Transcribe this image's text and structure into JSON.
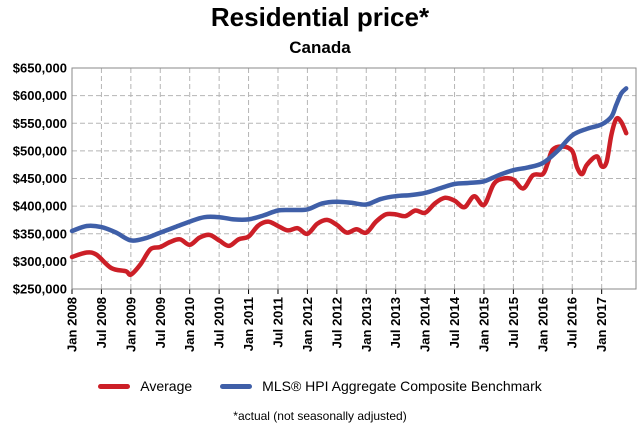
{
  "chart_data": {
    "type": "line",
    "title": "Residential price*",
    "subtitle": "Canada",
    "xlabel": "",
    "ylabel": "",
    "ylim": [
      250000,
      650000
    ],
    "y_ticks": [
      250000,
      300000,
      350000,
      400000,
      450000,
      500000,
      550000,
      600000,
      650000
    ],
    "y_tick_labels": [
      "$250,000",
      "$300,000",
      "$350,000",
      "$400,000",
      "$450,000",
      "$500,000",
      "$550,000",
      "$600,000",
      "$650,000"
    ],
    "x_ticks": [
      "Jan 2008",
      "Jul 2008",
      "Jan 2009",
      "Jul 2009",
      "Jan 2010",
      "Jul 2010",
      "Jan 2011",
      "Jul 2011",
      "Jan 2012",
      "Jul 2012",
      "Jan 2013",
      "Jul 2013",
      "Jan 2014",
      "Jul 2014",
      "Jan 2015",
      "Jul 2015",
      "Jan 2016",
      "Jul 2016",
      "Jan 2017"
    ],
    "grid": true,
    "legend_position": "bottom",
    "footnote": "*actual (not seasonally adjusted)",
    "series": [
      {
        "name": "Average",
        "color": "#cc1f27",
        "points": [
          [
            "Jan 2008",
            308000
          ],
          [
            "Apr 2008",
            316000
          ],
          [
            "Jun 2008",
            312000
          ],
          [
            "Sep 2008",
            288000
          ],
          [
            "Dec 2008",
            282000
          ],
          [
            "Jan 2009",
            276000
          ],
          [
            "Mar 2009",
            295000
          ],
          [
            "May 2009",
            322000
          ],
          [
            "Jul 2009",
            326000
          ],
          [
            "Sep 2009",
            335000
          ],
          [
            "Nov 2009",
            340000
          ],
          [
            "Jan 2010",
            330000
          ],
          [
            "Mar 2010",
            343000
          ],
          [
            "May 2010",
            348000
          ],
          [
            "Jul 2010",
            338000
          ],
          [
            "Sep 2010",
            328000
          ],
          [
            "Nov 2010",
            340000
          ],
          [
            "Jan 2011",
            345000
          ],
          [
            "Mar 2011",
            365000
          ],
          [
            "May 2011",
            372000
          ],
          [
            "Jul 2011",
            364000
          ],
          [
            "Sep 2011",
            356000
          ],
          [
            "Nov 2011",
            360000
          ],
          [
            "Jan 2012",
            350000
          ],
          [
            "Mar 2012",
            368000
          ],
          [
            "May 2012",
            375000
          ],
          [
            "Jul 2012",
            366000
          ],
          [
            "Sep 2012",
            352000
          ],
          [
            "Nov 2012",
            358000
          ],
          [
            "Jan 2013",
            352000
          ],
          [
            "Mar 2013",
            372000
          ],
          [
            "May 2013",
            385000
          ],
          [
            "Jul 2013",
            385000
          ],
          [
            "Sep 2013",
            382000
          ],
          [
            "Nov 2013",
            392000
          ],
          [
            "Jan 2014",
            388000
          ],
          [
            "Mar 2014",
            405000
          ],
          [
            "May 2014",
            415000
          ],
          [
            "Jul 2014",
            410000
          ],
          [
            "Sep 2014",
            398000
          ],
          [
            "Nov 2014",
            418000
          ],
          [
            "Jan 2015",
            402000
          ],
          [
            "Mar 2015",
            440000
          ],
          [
            "May 2015",
            450000
          ],
          [
            "Jul 2015",
            448000
          ],
          [
            "Sep 2015",
            432000
          ],
          [
            "Nov 2015",
            456000
          ],
          [
            "Jan 2016",
            458000
          ],
          [
            "Feb 2016",
            478000
          ],
          [
            "Mar 2016",
            502000
          ],
          [
            "May 2016",
            508000
          ],
          [
            "Jul 2016",
            500000
          ],
          [
            "Aug 2016",
            470000
          ],
          [
            "Sep 2016",
            458000
          ],
          [
            "Oct 2016",
            475000
          ],
          [
            "Dec 2016",
            490000
          ],
          [
            "Jan 2017",
            472000
          ],
          [
            "Feb 2017",
            480000
          ],
          [
            "Mar 2017",
            530000
          ],
          [
            "Apr 2017",
            558000
          ],
          [
            "May 2017",
            552000
          ],
          [
            "Jun 2017",
            532000
          ]
        ]
      },
      {
        "name": "MLS® HPI Aggregate Composite Benchmark",
        "color": "#3f5fa8",
        "points": [
          [
            "Jan 2008",
            355000
          ],
          [
            "Apr 2008",
            364000
          ],
          [
            "Jul 2008",
            362000
          ],
          [
            "Oct 2008",
            352000
          ],
          [
            "Jan 2009",
            338000
          ],
          [
            "Apr 2009",
            342000
          ],
          [
            "Jul 2009",
            352000
          ],
          [
            "Oct 2009",
            362000
          ],
          [
            "Jan 2010",
            372000
          ],
          [
            "Apr 2010",
            380000
          ],
          [
            "Jul 2010",
            380000
          ],
          [
            "Oct 2010",
            376000
          ],
          [
            "Jan 2011",
            376000
          ],
          [
            "Apr 2011",
            383000
          ],
          [
            "Jul 2011",
            392000
          ],
          [
            "Oct 2011",
            393000
          ],
          [
            "Jan 2012",
            394000
          ],
          [
            "Apr 2012",
            405000
          ],
          [
            "Jul 2012",
            408000
          ],
          [
            "Oct 2012",
            406000
          ],
          [
            "Jan 2013",
            403000
          ],
          [
            "Apr 2013",
            413000
          ],
          [
            "Jul 2013",
            418000
          ],
          [
            "Oct 2013",
            420000
          ],
          [
            "Jan 2014",
            424000
          ],
          [
            "Apr 2014",
            432000
          ],
          [
            "Jul 2014",
            440000
          ],
          [
            "Oct 2014",
            442000
          ],
          [
            "Jan 2015",
            445000
          ],
          [
            "Apr 2015",
            456000
          ],
          [
            "Jul 2015",
            465000
          ],
          [
            "Oct 2015",
            470000
          ],
          [
            "Jan 2016",
            478000
          ],
          [
            "Apr 2016",
            500000
          ],
          [
            "Jul 2016",
            528000
          ],
          [
            "Oct 2016",
            540000
          ],
          [
            "Jan 2017",
            548000
          ],
          [
            "Mar 2017",
            562000
          ],
          [
            "Apr 2017",
            584000
          ],
          [
            "May 2017",
            604000
          ],
          [
            "Jun 2017",
            613000
          ]
        ]
      }
    ]
  }
}
